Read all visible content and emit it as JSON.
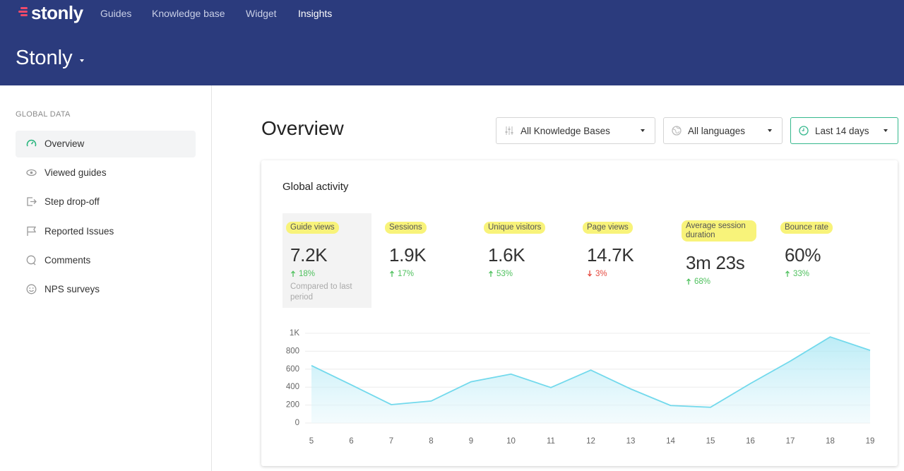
{
  "nav": {
    "logo": "stonly",
    "links": [
      "Guides",
      "Knowledge base",
      "Widget",
      "Insights"
    ]
  },
  "header": {
    "title": "Stonly"
  },
  "sidebar": {
    "section": "GLOBAL DATA",
    "items": [
      "Overview",
      "Viewed guides",
      "Step drop-off",
      "Reported Issues",
      "Comments",
      "NPS surveys"
    ]
  },
  "main": {
    "title": "Overview",
    "filters": [
      "All Knowledge Bases",
      "All languages",
      "Last 14 days"
    ]
  },
  "card": {
    "title": "Global activity",
    "metrics": [
      {
        "label": "Guide views",
        "value": "7.2K",
        "change": "18%",
        "direction": "up",
        "note": "Compared to last period"
      },
      {
        "label": "Sessions",
        "value": "1.9K",
        "change": "17%",
        "direction": "up"
      },
      {
        "label": "Unique visitors",
        "value": "1.6K",
        "change": "53%",
        "direction": "up"
      },
      {
        "label": "Page views",
        "value": "14.7K",
        "change": "3%",
        "direction": "down"
      },
      {
        "label": "Average session duration",
        "value": "3m 23s",
        "change": "68%",
        "direction": "up"
      },
      {
        "label": "Bounce rate",
        "value": "60%",
        "change": "33%",
        "direction": "up"
      }
    ]
  },
  "chart_data": {
    "type": "area",
    "x": [
      5,
      6,
      7,
      8,
      9,
      10,
      11,
      12,
      13,
      14,
      15,
      16,
      17,
      18,
      19
    ],
    "values": [
      640,
      425,
      205,
      245,
      460,
      545,
      395,
      590,
      380,
      195,
      175,
      440,
      690,
      960,
      810
    ],
    "color": "#72d9ec",
    "xlim": [
      5,
      19
    ],
    "xticks": [
      5,
      6,
      7,
      8,
      9,
      10,
      11,
      12,
      13,
      14,
      15,
      16,
      17,
      18,
      19
    ],
    "ylim": [
      0,
      1000
    ],
    "yticks": [
      0,
      200,
      400,
      600,
      800,
      {
        "value": 1000,
        "label": "1K"
      }
    ],
    "grid": true
  }
}
